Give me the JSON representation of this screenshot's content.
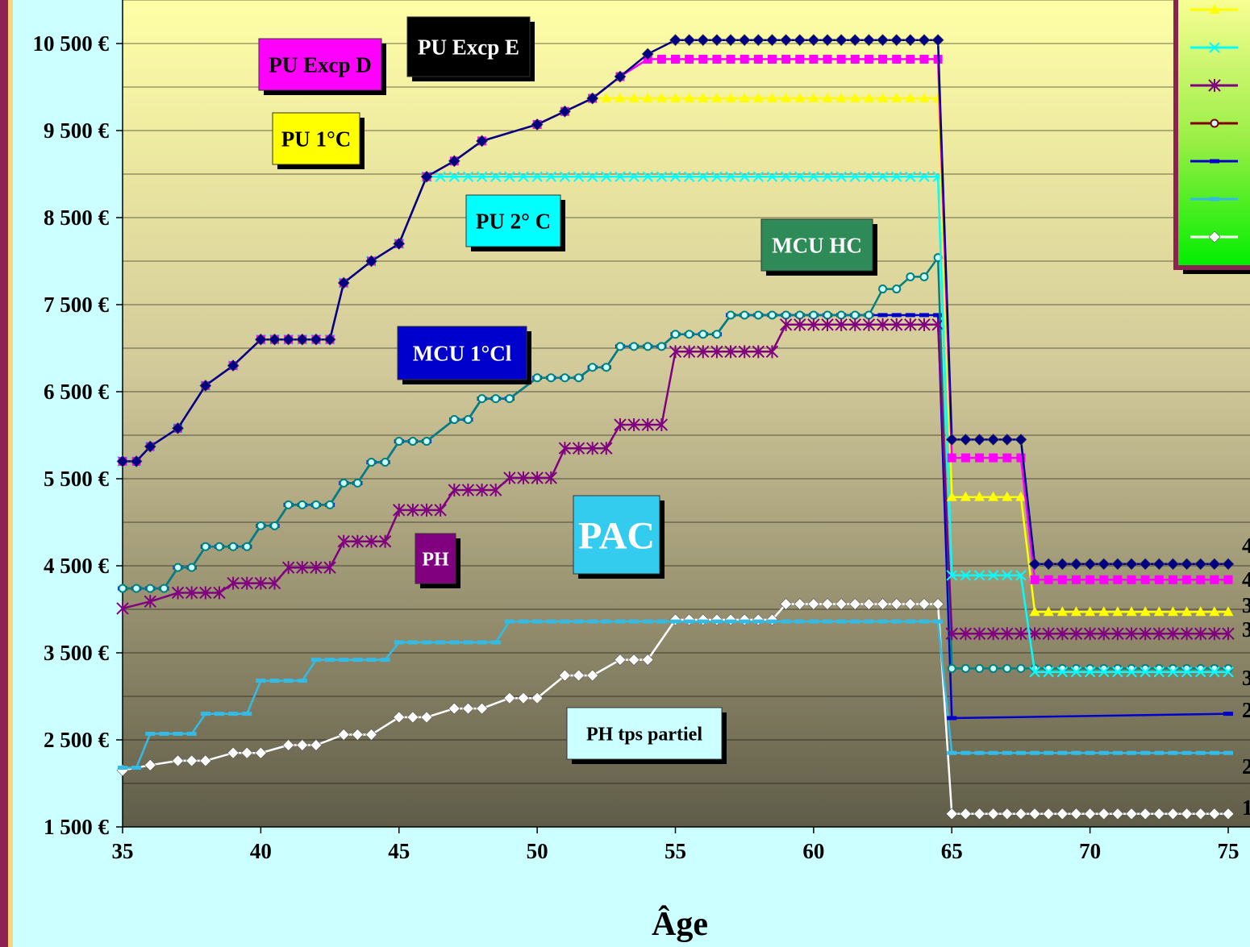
{
  "chart_data": {
    "type": "line",
    "xlabel": "Âge",
    "ylabel": "",
    "xlim": [
      35,
      75
    ],
    "ylim": [
      1500,
      11000
    ],
    "x_ticks": [
      "35",
      "40",
      "45",
      "50",
      "55",
      "60",
      "65",
      "70",
      "75"
    ],
    "y_ticks": [
      "1 500 €",
      "2 500 €",
      "3 500 €",
      "4 500 €",
      "5 500 €",
      "6 500 €",
      "7 500 €",
      "8 500 €",
      "9 500 €",
      "10 500 €"
    ],
    "grid": true,
    "legend_position": "top-right",
    "background_gradient": [
      "#ffffa6",
      "#5f5c48"
    ],
    "series": [
      {
        "name": "PU Excp E",
        "color": "#000080",
        "marker": "diamond",
        "points": [
          [
            35,
            5700
          ],
          [
            35.5,
            5700
          ],
          [
            36,
            5870
          ],
          [
            37,
            6080
          ],
          [
            38,
            6570
          ],
          [
            39,
            6800
          ],
          [
            40,
            7100
          ],
          [
            42.5,
            7100
          ],
          [
            43,
            7750
          ],
          [
            44,
            8000
          ],
          [
            45,
            8200
          ],
          [
            46,
            8970
          ],
          [
            47,
            9150
          ],
          [
            48,
            9380
          ],
          [
            50,
            9570
          ],
          [
            51,
            9720
          ],
          [
            52,
            9870
          ],
          [
            53,
            10120
          ],
          [
            54,
            10380
          ],
          [
            55,
            10540
          ],
          [
            64.5,
            10540
          ],
          [
            65,
            5950
          ],
          [
            67.5,
            5950
          ],
          [
            68,
            4520
          ],
          [
            75,
            4520
          ]
        ]
      },
      {
        "name": "PU Excp D",
        "color": "#ff00ff",
        "marker": "square",
        "points": [
          [
            35,
            5700
          ],
          [
            35.5,
            5700
          ],
          [
            36,
            5870
          ],
          [
            37,
            6080
          ],
          [
            38,
            6570
          ],
          [
            39,
            6800
          ],
          [
            40,
            7100
          ],
          [
            42.5,
            7100
          ],
          [
            43,
            7750
          ],
          [
            44,
            8000
          ],
          [
            45,
            8200
          ],
          [
            46,
            8970
          ],
          [
            47,
            9150
          ],
          [
            48,
            9380
          ],
          [
            50,
            9570
          ],
          [
            51,
            9720
          ],
          [
            52,
            9870
          ],
          [
            53,
            10120
          ],
          [
            54,
            10320
          ],
          [
            64.5,
            10320
          ],
          [
            65,
            5740
          ],
          [
            67.5,
            5740
          ],
          [
            68,
            4340
          ],
          [
            75,
            4340
          ]
        ]
      },
      {
        "name": "PU 1°C",
        "color": "#ffff00",
        "marker": "triangle",
        "points": [
          [
            35,
            5700
          ],
          [
            35.5,
            5700
          ],
          [
            36,
            5870
          ],
          [
            37,
            6080
          ],
          [
            38,
            6570
          ],
          [
            39,
            6800
          ],
          [
            40,
            7100
          ],
          [
            42.5,
            7100
          ],
          [
            43,
            7750
          ],
          [
            44,
            8000
          ],
          [
            45,
            8200
          ],
          [
            46,
            8970
          ],
          [
            47,
            9150
          ],
          [
            48,
            9380
          ],
          [
            50,
            9570
          ],
          [
            51,
            9720
          ],
          [
            52,
            9870
          ],
          [
            64.5,
            9870
          ],
          [
            65,
            5290
          ],
          [
            67.5,
            5290
          ],
          [
            68,
            3970
          ],
          [
            75,
            3970
          ]
        ]
      },
      {
        "name": "PU 2° C",
        "color": "#00ffff",
        "marker": "x",
        "points": [
          [
            35,
            5700
          ],
          [
            35.5,
            5700
          ],
          [
            36,
            5870
          ],
          [
            37,
            6080
          ],
          [
            38,
            6570
          ],
          [
            39,
            6800
          ],
          [
            40,
            7100
          ],
          [
            42.5,
            7100
          ],
          [
            43,
            7750
          ],
          [
            44,
            8000
          ],
          [
            45,
            8200
          ],
          [
            46,
            8970
          ],
          [
            64.5,
            8970
          ],
          [
            65,
            4390
          ],
          [
            67.5,
            4390
          ],
          [
            68,
            3280
          ],
          [
            75,
            3280
          ]
        ]
      },
      {
        "name": "PH",
        "color": "#800080",
        "marker": "star",
        "points": [
          [
            35,
            4010
          ],
          [
            36,
            4090
          ],
          [
            37,
            4190
          ],
          [
            38.5,
            4190
          ],
          [
            39,
            4300
          ],
          [
            40.5,
            4300
          ],
          [
            41,
            4480
          ],
          [
            42.5,
            4480
          ],
          [
            43,
            4780
          ],
          [
            44.5,
            4780
          ],
          [
            45,
            5140
          ],
          [
            46.5,
            5140
          ],
          [
            47,
            5370
          ],
          [
            48.5,
            5370
          ],
          [
            49,
            5510
          ],
          [
            50.5,
            5510
          ],
          [
            51,
            5850
          ],
          [
            52.5,
            5850
          ],
          [
            53,
            6120
          ],
          [
            54.5,
            6120
          ],
          [
            55,
            6960
          ],
          [
            58.5,
            6960
          ],
          [
            59,
            7270
          ],
          [
            64.5,
            7270
          ],
          [
            65,
            3720
          ],
          [
            75,
            3720
          ]
        ]
      },
      {
        "name": "MCU HC",
        "color": "#008080",
        "marker": "circle",
        "points": [
          [
            35,
            4240
          ],
          [
            36.5,
            4240
          ],
          [
            37,
            4480
          ],
          [
            37.5,
            4480
          ],
          [
            38,
            4720
          ],
          [
            39.5,
            4720
          ],
          [
            40,
            4960
          ],
          [
            40.5,
            4960
          ],
          [
            41,
            5200
          ],
          [
            42.5,
            5200
          ],
          [
            43,
            5450
          ],
          [
            43.5,
            5450
          ],
          [
            44,
            5690
          ],
          [
            44.5,
            5690
          ],
          [
            45,
            5930
          ],
          [
            46,
            5930
          ],
          [
            47,
            6180
          ],
          [
            47.5,
            6180
          ],
          [
            48,
            6420
          ],
          [
            49,
            6420
          ],
          [
            50,
            6660
          ],
          [
            51.5,
            6660
          ],
          [
            52,
            6780
          ],
          [
            52.5,
            6780
          ],
          [
            53,
            7020
          ],
          [
            54.5,
            7020
          ],
          [
            55,
            7160
          ],
          [
            56.5,
            7160
          ],
          [
            57,
            7380
          ],
          [
            62,
            7380
          ],
          [
            62.5,
            7680
          ],
          [
            63,
            7680
          ],
          [
            63.5,
            7820
          ],
          [
            64,
            7820
          ],
          [
            64.5,
            8040
          ],
          [
            65,
            3320
          ],
          [
            75,
            3320
          ]
        ]
      },
      {
        "name": "MCU 1°Cl",
        "color": "#0000cc",
        "marker": "dash",
        "points": [
          [
            35,
            4240
          ],
          [
            36.5,
            4240
          ],
          [
            37,
            4480
          ],
          [
            37.5,
            4480
          ],
          [
            38,
            4720
          ],
          [
            39.5,
            4720
          ],
          [
            40,
            4960
          ],
          [
            40.5,
            4960
          ],
          [
            41,
            5200
          ],
          [
            42.5,
            5200
          ],
          [
            43,
            5450
          ],
          [
            43.5,
            5450
          ],
          [
            44,
            5690
          ],
          [
            44.5,
            5690
          ],
          [
            45,
            5930
          ],
          [
            46,
            5930
          ],
          [
            47,
            6180
          ],
          [
            47.5,
            6180
          ],
          [
            48,
            6420
          ],
          [
            49,
            6420
          ],
          [
            50,
            6660
          ],
          [
            51.5,
            6660
          ],
          [
            52,
            6780
          ],
          [
            52.5,
            6780
          ],
          [
            53,
            7020
          ],
          [
            54.5,
            7020
          ],
          [
            55,
            7160
          ],
          [
            56.5,
            7160
          ],
          [
            57,
            7380
          ],
          [
            64.5,
            7380
          ],
          [
            65,
            2750
          ],
          [
            75,
            2800
          ]
        ]
      },
      {
        "name": "PAC",
        "color": "#33bbe6",
        "marker": "dash",
        "points": [
          [
            35,
            2180
          ],
          [
            35.5,
            2180
          ],
          [
            36,
            2570
          ],
          [
            37.5,
            2570
          ],
          [
            38,
            2800
          ],
          [
            39.5,
            2800
          ],
          [
            40,
            3180
          ],
          [
            41.5,
            3180
          ],
          [
            42,
            3420
          ],
          [
            44.5,
            3420
          ],
          [
            45,
            3620
          ],
          [
            48.5,
            3620
          ],
          [
            49,
            3860
          ],
          [
            64.5,
            3860
          ],
          [
            65,
            2350
          ],
          [
            75,
            2350
          ]
        ]
      },
      {
        "name": "PH tps partiel",
        "color": "#ffffff",
        "marker": "diamond",
        "points": [
          [
            35,
            2150
          ],
          [
            36,
            2210
          ],
          [
            37,
            2260
          ],
          [
            38,
            2260
          ],
          [
            39,
            2350
          ],
          [
            40,
            2350
          ],
          [
            41,
            2440
          ],
          [
            42,
            2440
          ],
          [
            43,
            2560
          ],
          [
            44,
            2560
          ],
          [
            45,
            2760
          ],
          [
            46,
            2760
          ],
          [
            47,
            2860
          ],
          [
            48,
            2860
          ],
          [
            49,
            2980
          ],
          [
            50,
            2980
          ],
          [
            51,
            3240
          ],
          [
            52,
            3240
          ],
          [
            53,
            3420
          ],
          [
            54,
            3420
          ],
          [
            55,
            3880
          ],
          [
            58.5,
            3880
          ],
          [
            59,
            4060
          ],
          [
            64.5,
            4060
          ],
          [
            65,
            1650
          ],
          [
            75,
            1650
          ]
        ]
      }
    ],
    "callouts": [
      {
        "text": "PU Excp D",
        "bg": "#ff00ff",
        "fg": "#000000"
      },
      {
        "text": "PU Excp E",
        "bg": "#000000",
        "fg": "#ffffff"
      },
      {
        "text": "PU 1°C",
        "bg": "#ffff00",
        "fg": "#000000"
      },
      {
        "text": "PU 2° C",
        "bg": "#00ffff",
        "fg": "#000000"
      },
      {
        "text": "MCU HC",
        "bg": "#2e8b57",
        "fg": "#ffffff"
      },
      {
        "text": "MCU  1°Cl",
        "bg": "#0000cc",
        "fg": "#ffffff"
      },
      {
        "text": "PAC",
        "bg": "#33ccee",
        "fg": "#ffffff"
      },
      {
        "text": "PH",
        "bg": "#800080",
        "fg": "#ffffff"
      },
      {
        "text": "PH tps partiel",
        "bg": "#ccffff",
        "fg": "#000000"
      }
    ],
    "right_edge_labels": [
      "4",
      "4",
      "3",
      "3",
      "3",
      "2",
      "2",
      "1"
    ]
  }
}
